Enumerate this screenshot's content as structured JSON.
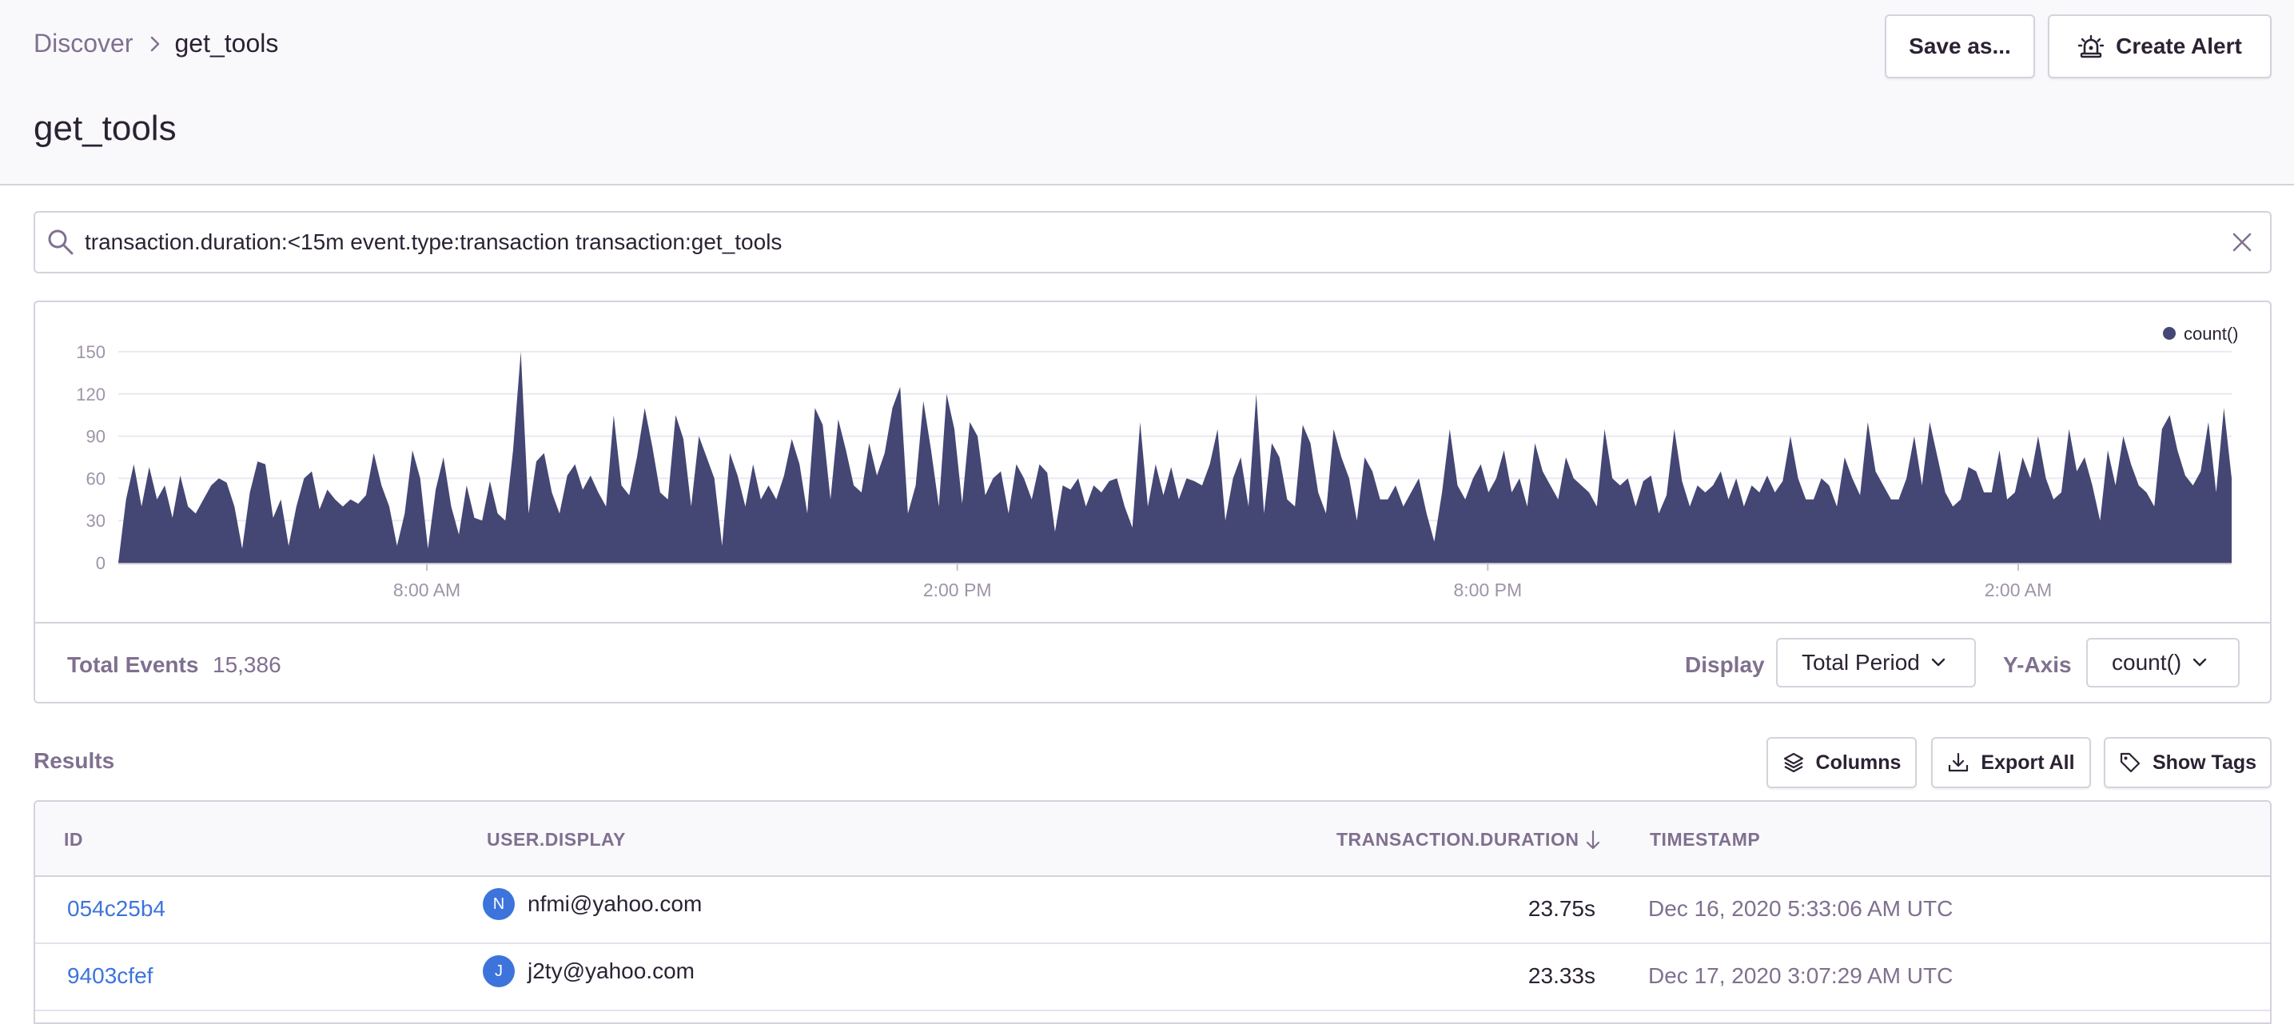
{
  "breadcrumb": {
    "root": "Discover",
    "current": "get_tools"
  },
  "page": {
    "title": "get_tools"
  },
  "actions": {
    "save_label": "Save as...",
    "create_alert_label": "Create Alert"
  },
  "search": {
    "query": "transaction.duration:<15m event.type:transaction transaction:get_tools"
  },
  "chart_data": {
    "type": "area",
    "legend": [
      "count()"
    ],
    "legend_position": "top-right",
    "ylim": [
      0,
      150
    ],
    "y_ticks": [
      0,
      30,
      60,
      90,
      120,
      150
    ],
    "x_tick_labels": [
      "8:00 AM",
      "2:00 PM",
      "8:00 PM",
      "2:00 AM"
    ],
    "series": [
      {
        "name": "count()",
        "color": "#444674",
        "values": [
          0,
          45,
          70,
          40,
          68,
          45,
          55,
          32,
          62,
          40,
          35,
          45,
          55,
          60,
          57,
          40,
          10,
          50,
          72,
          70,
          32,
          45,
          12,
          40,
          60,
          65,
          38,
          52,
          45,
          40,
          45,
          42,
          48,
          78,
          55,
          40,
          12,
          35,
          80,
          60,
          10,
          52,
          75,
          40,
          20,
          55,
          32,
          30,
          58,
          35,
          30,
          80,
          150,
          35,
          72,
          78,
          50,
          35,
          62,
          70,
          52,
          62,
          50,
          40,
          105,
          55,
          48,
          75,
          110,
          82,
          50,
          45,
          105,
          88,
          40,
          90,
          75,
          60,
          12,
          78,
          62,
          40,
          70,
          45,
          55,
          45,
          62,
          88,
          70,
          35,
          110,
          98,
          45,
          102,
          80,
          55,
          50,
          85,
          62,
          78,
          110,
          125,
          35,
          55,
          115,
          80,
          40,
          120,
          95,
          42,
          100,
          90,
          48,
          60,
          65,
          35,
          70,
          60,
          45,
          70,
          64,
          22,
          55,
          52,
          60,
          40,
          55,
          50,
          58,
          60,
          40,
          25,
          100,
          40,
          70,
          48,
          68,
          45,
          60,
          58,
          55,
          70,
          95,
          30,
          60,
          75,
          40,
          120,
          35,
          85,
          75,
          45,
          40,
          98,
          85,
          50,
          35,
          95,
          75,
          60,
          30,
          75,
          65,
          45,
          45,
          55,
          40,
          50,
          60,
          35,
          15,
          50,
          95,
          55,
          45,
          60,
          70,
          50,
          60,
          80,
          50,
          60,
          40,
          85,
          65,
          55,
          45,
          75,
          60,
          55,
          50,
          40,
          95,
          60,
          55,
          60,
          40,
          58,
          62,
          35,
          48,
          95,
          58,
          40,
          55,
          50,
          55,
          65,
          45,
          60,
          40,
          55,
          50,
          62,
          50,
          58,
          90,
          60,
          45,
          45,
          60,
          55,
          40,
          75,
          60,
          48,
          100,
          65,
          55,
          45,
          45,
          60,
          90,
          55,
          100,
          75,
          50,
          40,
          45,
          68,
          65,
          50,
          50,
          80,
          45,
          50,
          75,
          60,
          90,
          60,
          45,
          50,
          95,
          65,
          75,
          55,
          30,
          80,
          55,
          90,
          70,
          55,
          50,
          40,
          95,
          105,
          80,
          62,
          55,
          65,
          100,
          50,
          110,
          60
        ]
      }
    ]
  },
  "chart_footer": {
    "total_label": "Total Events",
    "total_value": "15,386",
    "display_label": "Display",
    "display_value": "Total Period",
    "yaxis_label": "Y-Axis",
    "yaxis_value": "count()"
  },
  "results": {
    "title": "Results",
    "columns_button": "Columns",
    "export_button": "Export All",
    "tags_button": "Show Tags",
    "headers": {
      "id": "ID",
      "user": "USER.DISPLAY",
      "duration": "TRANSACTION.DURATION",
      "timestamp": "TIMESTAMP"
    },
    "rows": [
      {
        "id": "054c25b4",
        "avatar": "N",
        "user": "nfmi@yahoo.com",
        "duration": "23.75s",
        "timestamp": "Dec 16, 2020 5:33:06 AM UTC"
      },
      {
        "id": "9403cfef",
        "avatar": "J",
        "user": "j2ty@yahoo.com",
        "duration": "23.33s",
        "timestamp": "Dec 17, 2020 3:07:29 AM UTC"
      }
    ]
  },
  "icons": {
    "breadcrumb_separator": "chevron-right-icon",
    "create_alert": "siren-icon",
    "search": "search-icon",
    "clear": "close-icon",
    "columns": "layers-icon",
    "export": "download-icon",
    "tags": "tag-icon",
    "dropdown": "chevron-down-icon",
    "sort": "arrow-down-icon"
  }
}
